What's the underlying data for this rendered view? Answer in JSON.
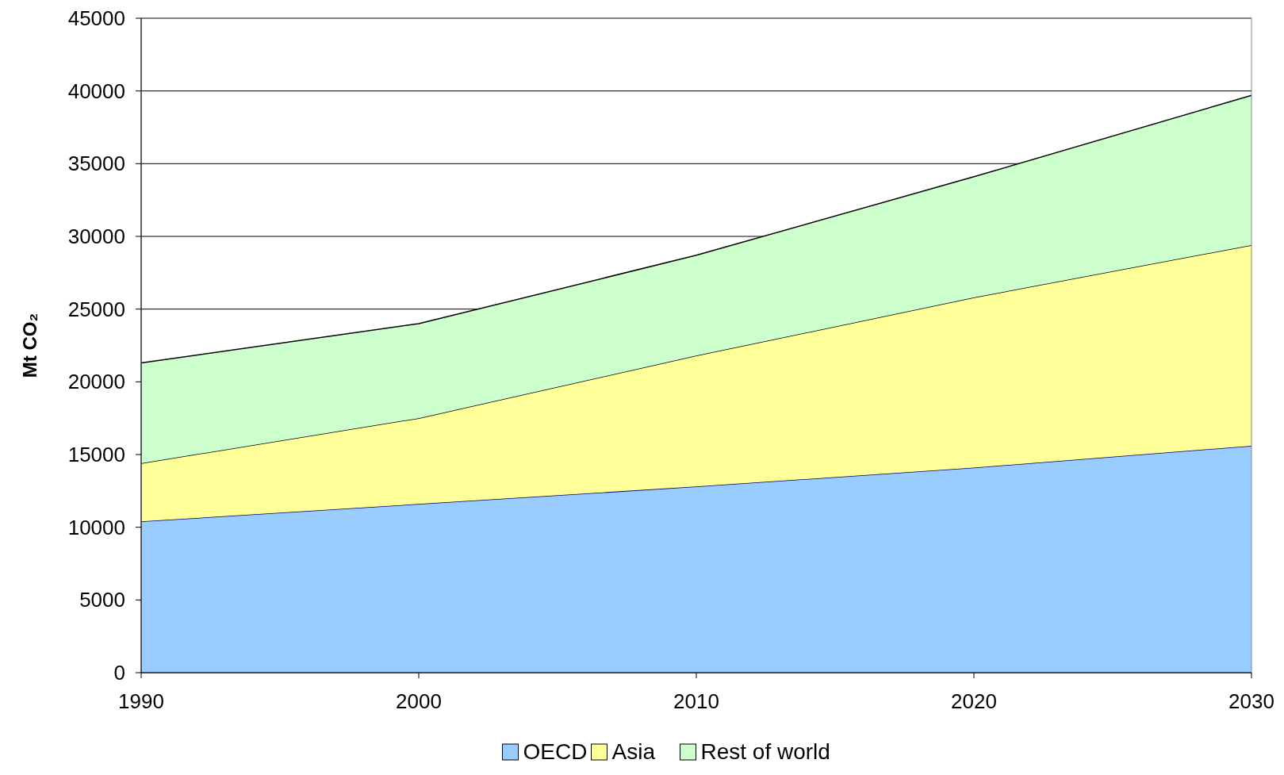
{
  "chart_data": {
    "type": "area",
    "stacked": true,
    "ylabel": "Mt CO₂",
    "x": [
      1990,
      2000,
      2010,
      2020,
      2030
    ],
    "series": [
      {
        "name": "OECD",
        "color": "#99ccff",
        "values": [
          10400,
          11600,
          12800,
          14100,
          15600
        ]
      },
      {
        "name": "Asia",
        "color": "#ffff99",
        "values": [
          4000,
          5900,
          9000,
          11700,
          13800
        ]
      },
      {
        "name": "Rest of world",
        "color": "#ccffcc",
        "values": [
          6900,
          6500,
          6900,
          8300,
          10300
        ]
      }
    ],
    "xlim": [
      1990,
      2030
    ],
    "xticks": [
      1990,
      2000,
      2010,
      2020,
      2030
    ],
    "ylim": [
      0,
      45000
    ],
    "yticks": [
      0,
      5000,
      10000,
      15000,
      20000,
      25000,
      30000,
      35000,
      40000,
      45000
    ],
    "grid": "y",
    "legend": "bottom"
  }
}
